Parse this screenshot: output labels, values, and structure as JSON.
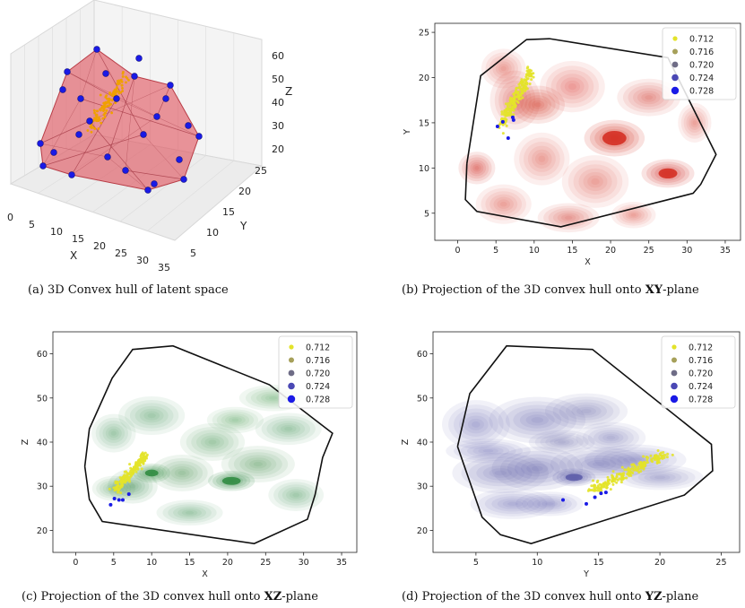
{
  "captions": {
    "a": "(a) 3D Convex hull of latent space",
    "b_pre": "(b) Projection of the 3D convex hull onto ",
    "b_bold": "XY",
    "b_post": "-plane",
    "c_pre": "(c) Projection of the 3D convex hull onto ",
    "c_bold": "XZ",
    "c_post": "-plane",
    "d_pre": "(d) Projection of the 3D convex hull onto ",
    "d_bold": "YZ",
    "d_post": "-plane"
  },
  "legend": {
    "entries": [
      {
        "label": "0.712",
        "color": "#e3e32a"
      },
      {
        "label": "0.716",
        "color": "#a6a05a"
      },
      {
        "label": "0.720",
        "color": "#6e6c86"
      },
      {
        "label": "0.724",
        "color": "#4a48b4"
      },
      {
        "label": "0.728",
        "color": "#1a1ae6"
      }
    ]
  },
  "chart_data": [
    {
      "id": "3d",
      "type": "scatter",
      "title": "3D Convex hull of latent space",
      "xlabel": "X",
      "ylabel": "Y",
      "zlabel": "Z",
      "x_ticks": [
        "0",
        "5",
        "10",
        "15",
        "20",
        "25",
        "30",
        "35"
      ],
      "y_ticks": [
        "5",
        "10",
        "15",
        "20",
        "25"
      ],
      "z_ticks": [
        "20",
        "30",
        "40",
        "50",
        "60"
      ],
      "hull_color": "#e0505a",
      "point_color": "#1a1ae6"
    },
    {
      "id": "xy",
      "type": "scatter",
      "title": "Projection of the 3D convex hull onto XY-plane",
      "xlabel": "X",
      "ylabel": "Y",
      "xlim": [
        -3,
        37
      ],
      "ylim": [
        2,
        26
      ],
      "x_ticks": [
        0,
        5,
        10,
        15,
        20,
        25,
        30,
        35
      ],
      "y_ticks": [
        5,
        10,
        15,
        20,
        25
      ],
      "density_color": "#d42a1e",
      "hull": [
        [
          1.2,
          10.5
        ],
        [
          1,
          6.5
        ],
        [
          2.5,
          5.2
        ],
        [
          13.5,
          3.5
        ],
        [
          30.8,
          7.2
        ],
        [
          31.8,
          8.2
        ],
        [
          33.8,
          11.5
        ],
        [
          27.5,
          22.2
        ],
        [
          12,
          24.3
        ],
        [
          9,
          24.2
        ],
        [
          3,
          20.2
        ],
        [
          1.2,
          10.5
        ]
      ],
      "density": [
        {
          "x": 20.5,
          "y": 13.3,
          "rx": 4.5,
          "ry": 2.3,
          "w": 1.0
        },
        {
          "x": 27.5,
          "y": 9.4,
          "rx": 3.5,
          "ry": 1.6,
          "w": 0.85
        },
        {
          "x": 10.5,
          "y": 17,
          "rx": 3,
          "ry": 1.8,
          "w": 0.6
        },
        {
          "x": 7.5,
          "y": 17.5,
          "rx": 2.5,
          "ry": 2.5,
          "w": 0.4
        },
        {
          "x": 2.5,
          "y": 10,
          "rx": 2,
          "ry": 1.5,
          "w": 0.55
        },
        {
          "x": 14.5,
          "y": 4.5,
          "rx": 3,
          "ry": 1.2,
          "w": 0.35
        },
        {
          "x": 25,
          "y": 17.8,
          "rx": 3,
          "ry": 1.5,
          "w": 0.3
        },
        {
          "x": 15,
          "y": 19,
          "rx": 3,
          "ry": 2,
          "w": 0.25
        },
        {
          "x": 18,
          "y": 8.5,
          "rx": 3,
          "ry": 2,
          "w": 0.2
        },
        {
          "x": 11,
          "y": 11,
          "rx": 2.5,
          "ry": 2,
          "w": 0.2
        },
        {
          "x": 6,
          "y": 6,
          "rx": 2.5,
          "ry": 1.5,
          "w": 0.2
        },
        {
          "x": 23,
          "y": 4.8,
          "rx": 2,
          "ry": 1,
          "w": 0.2
        },
        {
          "x": 31,
          "y": 15,
          "rx": 1.5,
          "ry": 1.5,
          "w": 0.2
        },
        {
          "x": 6,
          "y": 21,
          "rx": 2,
          "ry": 1.5,
          "w": 0.2
        }
      ],
      "cluster": {
        "x0": 5.6,
        "y0": 14.6,
        "x1": 9.6,
        "y1": 20.6,
        "spread": 0.45,
        "n": 200
      },
      "blue": [
        [
          5.2,
          14.6
        ],
        [
          5.9,
          15.1
        ],
        [
          6.6,
          13.3
        ],
        [
          7.2,
          15.6
        ],
        [
          7.3,
          15.3
        ]
      ]
    },
    {
      "id": "xz",
      "type": "scatter",
      "title": "Projection of the 3D convex hull onto XZ-plane",
      "xlabel": "X",
      "ylabel": "Z",
      "xlim": [
        -3,
        37
      ],
      "ylim": [
        15,
        65
      ],
      "x_ticks": [
        0,
        5,
        10,
        15,
        20,
        25,
        30,
        35
      ],
      "y_ticks": [
        20,
        30,
        40,
        50,
        60
      ],
      "density_color": "#2d8a3e",
      "hull": [
        [
          1.2,
          34.5
        ],
        [
          1.8,
          43
        ],
        [
          4.8,
          54.5
        ],
        [
          7.5,
          61
        ],
        [
          12.8,
          61.8
        ],
        [
          25.5,
          53
        ],
        [
          33.8,
          42
        ],
        [
          32.5,
          36.5
        ],
        [
          31.5,
          28
        ],
        [
          30.5,
          22.5
        ],
        [
          23.5,
          17
        ],
        [
          3.5,
          22
        ],
        [
          1.8,
          27
        ],
        [
          1.2,
          34.5
        ]
      ],
      "density": [
        {
          "x": 20.5,
          "y": 31.2,
          "rx": 3.5,
          "ry": 2.6,
          "w": 1.0
        },
        {
          "x": 10,
          "y": 33,
          "rx": 2.5,
          "ry": 2.2,
          "w": 0.85
        },
        {
          "x": 14,
          "y": 33,
          "rx": 3,
          "ry": 3,
          "w": 0.3
        },
        {
          "x": 7.5,
          "y": 30,
          "rx": 2.5,
          "ry": 3,
          "w": 0.4
        },
        {
          "x": 24,
          "y": 35,
          "rx": 3.5,
          "ry": 3,
          "w": 0.3
        },
        {
          "x": 18,
          "y": 40,
          "rx": 3,
          "ry": 3,
          "w": 0.25
        },
        {
          "x": 28,
          "y": 43,
          "rx": 3,
          "ry": 2.5,
          "w": 0.2
        },
        {
          "x": 10,
          "y": 46,
          "rx": 3,
          "ry": 3,
          "w": 0.2
        },
        {
          "x": 5,
          "y": 42,
          "rx": 2,
          "ry": 3,
          "w": 0.2
        },
        {
          "x": 26,
          "y": 50,
          "rx": 3,
          "ry": 2,
          "w": 0.15
        },
        {
          "x": 15,
          "y": 24,
          "rx": 3,
          "ry": 2,
          "w": 0.2
        },
        {
          "x": 29,
          "y": 28,
          "rx": 2.5,
          "ry": 2.5,
          "w": 0.2
        },
        {
          "x": 5,
          "y": 29.5,
          "rx": 2,
          "ry": 2,
          "w": 0.25
        },
        {
          "x": 21,
          "y": 45,
          "rx": 2.5,
          "ry": 2,
          "w": 0.15
        }
      ],
      "cluster": {
        "x0": 5.2,
        "y0": 29,
        "x1": 9.2,
        "y1": 37,
        "spread": 0.45,
        "n": 200
      },
      "blue": [
        [
          4.6,
          25.8
        ],
        [
          5.7,
          26.9
        ],
        [
          6.2,
          26.9
        ],
        [
          7.0,
          28.2
        ],
        [
          5.1,
          27.2
        ]
      ]
    },
    {
      "id": "yz",
      "type": "scatter",
      "title": "Projection of the 3D convex hull onto YZ-plane",
      "xlabel": "Y",
      "ylabel": "Z",
      "xlim": [
        1.5,
        26.5
      ],
      "ylim": [
        15,
        65
      ],
      "x_ticks": [
        5,
        10,
        15,
        20,
        25
      ],
      "y_ticks": [
        20,
        30,
        40,
        50,
        60
      ],
      "density_color": "#5b5ba8",
      "hull": [
        [
          3.5,
          39
        ],
        [
          4.5,
          51
        ],
        [
          7.5,
          61.8
        ],
        [
          14.5,
          61
        ],
        [
          24.2,
          39.5
        ],
        [
          24.3,
          33.5
        ],
        [
          22,
          28
        ],
        [
          9.5,
          17
        ],
        [
          7,
          19
        ],
        [
          5.5,
          23
        ],
        [
          3.5,
          39
        ]
      ],
      "density": [
        {
          "x": 13,
          "y": 32,
          "rx": 2,
          "ry": 2.3,
          "w": 1.0
        },
        {
          "x": 10,
          "y": 34,
          "rx": 3,
          "ry": 4,
          "w": 0.5
        },
        {
          "x": 7,
          "y": 33,
          "rx": 3,
          "ry": 3.5,
          "w": 0.4
        },
        {
          "x": 15,
          "y": 35,
          "rx": 3,
          "ry": 3,
          "w": 0.4
        },
        {
          "x": 10,
          "y": 45,
          "rx": 3,
          "ry": 4,
          "w": 0.4
        },
        {
          "x": 14,
          "y": 47,
          "rx": 2.5,
          "ry": 3,
          "w": 0.35
        },
        {
          "x": 18,
          "y": 36,
          "rx": 3,
          "ry": 2.5,
          "w": 0.3
        },
        {
          "x": 5,
          "y": 44,
          "rx": 2,
          "ry": 4,
          "w": 0.3
        },
        {
          "x": 12,
          "y": 40,
          "rx": 2,
          "ry": 2,
          "w": 0.35
        },
        {
          "x": 8,
          "y": 26,
          "rx": 2.5,
          "ry": 2.5,
          "w": 0.3
        },
        {
          "x": 11,
          "y": 26,
          "rx": 2,
          "ry": 2,
          "w": 0.3
        },
        {
          "x": 16,
          "y": 41,
          "rx": 2,
          "ry": 2.5,
          "w": 0.25
        },
        {
          "x": 20,
          "y": 32,
          "rx": 2.5,
          "ry": 2,
          "w": 0.25
        },
        {
          "x": 6,
          "y": 38,
          "rx": 2.5,
          "ry": 2,
          "w": 0.3
        }
      ],
      "cluster": {
        "x0": 14.5,
        "y0": 29,
        "x1": 20.5,
        "y1": 37.5,
        "spread": 0.5,
        "n": 200
      },
      "blue": [
        [
          12.1,
          26.9
        ],
        [
          14.0,
          26.0
        ],
        [
          14.7,
          27.5
        ],
        [
          15.2,
          28.4
        ],
        [
          15.6,
          28.6
        ]
      ]
    }
  ]
}
